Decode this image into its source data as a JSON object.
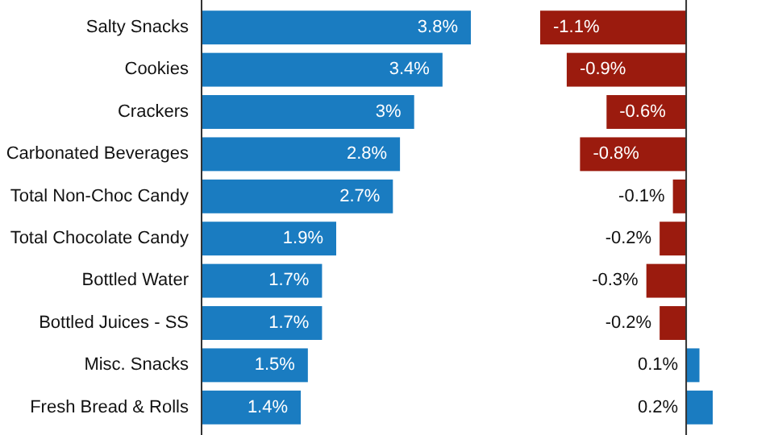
{
  "chart_data": [
    {
      "type": "bar",
      "orientation": "horizontal",
      "categories": [
        "Salty Snacks",
        "Cookies",
        "Crackers",
        "Carbonated Beverages",
        "Total Non-Choc Candy",
        "Total Chocolate Candy",
        "Bottled Water",
        "Bottled Juices - SS",
        "Misc. Snacks",
        "Fresh Bread & Rolls"
      ],
      "values": [
        3.8,
        3.4,
        3,
        2.8,
        2.7,
        1.9,
        1.7,
        1.7,
        1.5,
        1.4
      ],
      "value_labels": [
        "3.8%",
        "3.4%",
        "3%",
        "2.8%",
        "2.7%",
        "1.9%",
        "1.7%",
        "1.7%",
        "1.5%",
        "1.4%"
      ],
      "color": "#1a7cc1"
    },
    {
      "type": "bar",
      "orientation": "horizontal",
      "categories": [
        null,
        null,
        null,
        null,
        null,
        null,
        null,
        null,
        null,
        null
      ],
      "values": [
        -1.1,
        -0.9,
        -0.6,
        -0.8,
        -0.1,
        -0.2,
        -0.3,
        -0.2,
        0.1,
        0.2
      ],
      "value_labels": [
        "-1.1%",
        "-0.9%",
        "-0.6%",
        "-0.8%",
        "-0.1%",
        "-0.2%",
        "-0.3%",
        "-0.2%",
        "0.1%",
        "0.2%"
      ],
      "colors": [
        "#9b1b0e",
        "#9b1b0e",
        "#9b1b0e",
        "#9b1b0e",
        "#9b1b0e",
        "#9b1b0e",
        "#9b1b0e",
        "#9b1b0e",
        "#1a7cc1",
        "#1a7cc1"
      ]
    }
  ]
}
